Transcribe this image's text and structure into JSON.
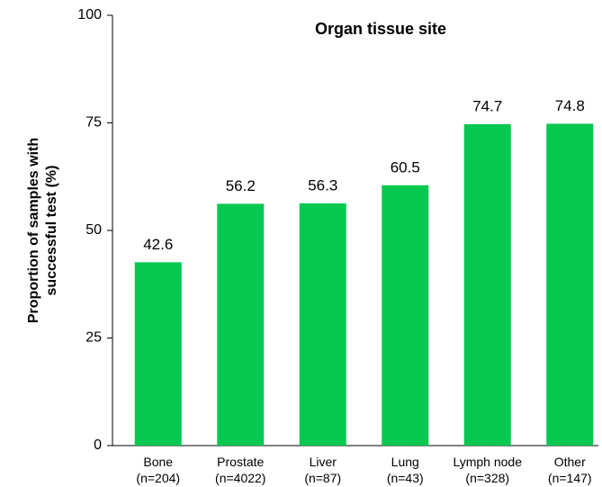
{
  "chart_data": {
    "type": "bar",
    "title": "Organ tissue site",
    "y_label": "Proportion of samples with\nsuccessful test  (%)",
    "categories": [
      "Bone\n(n=204)",
      "Prostate\n(n=4022)",
      "Liver\n(n=87)",
      "Lung\n(n=43)",
      "Lymph node\n(n=328)",
      "Other\n(n=147)"
    ],
    "values": [
      42.6,
      56.2,
      56.3,
      60.5,
      74.7,
      74.8
    ],
    "color": "#05c850",
    "ylim": [
      0,
      100
    ],
    "yticks": [
      0,
      25,
      50,
      75,
      100
    ],
    "grid": false
  }
}
